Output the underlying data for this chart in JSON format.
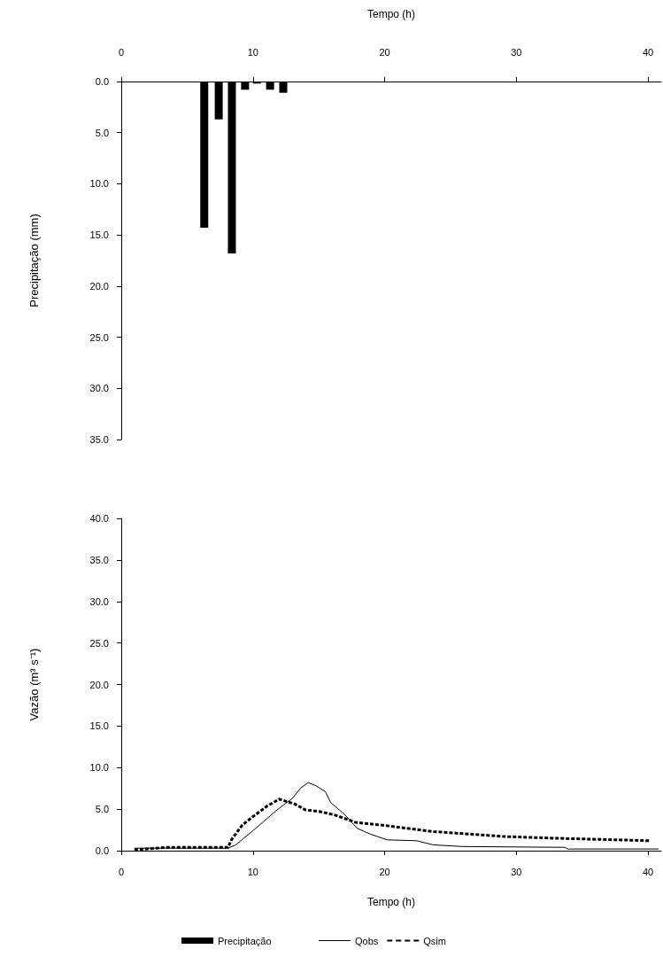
{
  "chart_data": [
    {
      "type": "bar",
      "xlabel": "Tempo (h)",
      "ylabel": "Precipitação (mm)",
      "x": [
        6.3,
        7.4,
        8.4,
        9.4,
        10.3,
        11.3,
        12.3
      ],
      "series": [
        {
          "name": "Precipitação",
          "color": "#000000",
          "values": [
            14.3,
            3.7,
            16.8,
            0.8,
            0.2,
            0.8,
            1.1
          ]
        }
      ],
      "xlim": [
        0,
        41
      ],
      "xticks": [
        0,
        10,
        20,
        30,
        40
      ],
      "ylim": [
        35,
        0
      ],
      "yticks": [
        {
          "value": 0,
          "label": "0.0"
        },
        {
          "value": 5,
          "label": "5.0"
        },
        {
          "value": 10,
          "label": "10.0"
        },
        {
          "value": 15,
          "label": "15.0"
        },
        {
          "value": 20,
          "label": "20.0"
        },
        {
          "value": 25,
          "label": "25.0"
        },
        {
          "value": 30,
          "label": "30.0"
        },
        {
          "value": 35,
          "label": "35.0"
        }
      ],
      "grid": false,
      "legend": "bottom"
    },
    {
      "type": "line",
      "xlabel": "Tempo (h)",
      "ylabel": "Vazão (m³ s⁻¹)",
      "marker": "none",
      "series": [
        {
          "name": "Qobs",
          "color": "#000000",
          "line_style": "solid",
          "x": [
            1.0,
            8.1,
            8.7,
            10.0,
            10.8,
            11.9,
            13.0,
            13.6,
            14.2,
            14.8,
            15.5,
            15.9,
            17.0,
            17.9,
            18.9,
            20.2,
            22.4,
            23.7,
            25.9,
            33.7,
            33.9,
            40.8
          ],
          "values": [
            0.3,
            0.3,
            0.7,
            2.4,
            3.5,
            5.0,
            6.3,
            7.5,
            8.2,
            7.8,
            7.1,
            5.8,
            4.3,
            2.7,
            2.0,
            1.3,
            1.2,
            0.7,
            0.5,
            0.4,
            0.2,
            0.2
          ]
        },
        {
          "name": "Qsim",
          "color": "#000000",
          "line_style": "dashed",
          "x": [
            1.0,
            3.5,
            8.1,
            8.4,
            9.2,
            10.0,
            11.1,
            12.0,
            13.2,
            14.0,
            15.1,
            16.2,
            17.8,
            20.2,
            23.7,
            29.1,
            32.9,
            40.1
          ],
          "values": [
            0.1,
            0.4,
            0.4,
            1.4,
            3.1,
            4.1,
            5.4,
            6.2,
            5.6,
            4.9,
            4.7,
            4.3,
            3.4,
            3.0,
            2.3,
            1.7,
            1.5,
            1.2
          ]
        }
      ],
      "xlim": [
        0,
        41
      ],
      "xticks": [
        0,
        10,
        20,
        30,
        40
      ],
      "ylim": [
        0,
        40
      ],
      "yticks": [
        {
          "value": 0,
          "label": "0.0"
        },
        {
          "value": 5,
          "label": "5.0"
        },
        {
          "value": 10,
          "label": "10.0"
        },
        {
          "value": 15,
          "label": "15.0"
        },
        {
          "value": 20,
          "label": "20.0"
        },
        {
          "value": 25,
          "label": "25.0"
        },
        {
          "value": 30,
          "label": "30.0"
        },
        {
          "value": 35,
          "label": "35.0"
        },
        {
          "value": 40,
          "label": "40.0"
        }
      ],
      "grid": false,
      "legend": "bottom"
    }
  ]
}
